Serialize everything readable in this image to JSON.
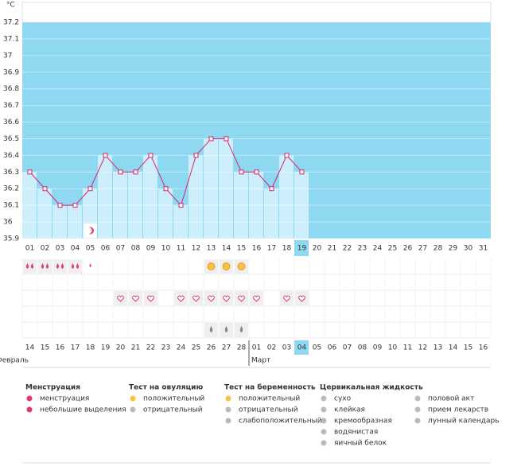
{
  "chart_data": {
    "type": "bar-line",
    "y_unit": "°C",
    "categories": [
      "01",
      "02",
      "03",
      "04",
      "05",
      "06",
      "07",
      "08",
      "09",
      "10",
      "11",
      "12",
      "13",
      "14",
      "15",
      "16",
      "17",
      "18",
      "19",
      "20",
      "21",
      "22",
      "23",
      "24",
      "25",
      "26",
      "27",
      "28",
      "29",
      "30",
      "31"
    ],
    "values": [
      36.3,
      36.2,
      36.1,
      36.1,
      36.2,
      36.4,
      36.3,
      36.3,
      36.4,
      36.2,
      36.1,
      36.4,
      36.5,
      36.5,
      36.3,
      36.3,
      36.2,
      36.4,
      36.3,
      null,
      null,
      null,
      null,
      null,
      null,
      null,
      null,
      null,
      null,
      null,
      null
    ],
    "color": "#d6246e",
    "bar_color": "#cdeefb",
    "background_color": "#8fd8f2",
    "ylim": [
      35.9,
      37.2
    ],
    "yticks": [
      35.9,
      36,
      36.1,
      36.2,
      36.3,
      36.4,
      36.5,
      36.6,
      36.7,
      36.8,
      36.9,
      37,
      37.1,
      37.2
    ],
    "grid": true,
    "bottom_dates": [
      "14",
      "15",
      "16",
      "17",
      "18",
      "19",
      "20",
      "21",
      "22",
      "23",
      "24",
      "25",
      "26",
      "27",
      "28",
      "01",
      "02",
      "03",
      "04",
      "05",
      "06",
      "07",
      "08",
      "09",
      "10",
      "11",
      "12",
      "13",
      "14",
      "15",
      "16"
    ],
    "bottom_date_colors": [
      "#333",
      "#c8174f",
      "#c8174f",
      "#333",
      "#333",
      "#333",
      "#333",
      "#333",
      "#c8174f",
      "#c8174f",
      "#333",
      "#333",
      "#333",
      "#333",
      "#333",
      "#c8174f",
      "#c8174f",
      "#333",
      "#333",
      "#333",
      "#333",
      "#333",
      "#c8174f",
      "#c8174f",
      "#333",
      "#333",
      "#333",
      "#333",
      "#333",
      "#c8174f",
      "#c8174f"
    ],
    "months": [
      "Февраль",
      "Март"
    ]
  },
  "legend": [
    {
      "title": "Менструация",
      "items": [
        "менструация",
        "небольшие выделения"
      ]
    },
    {
      "title": "Тест на овуляцию",
      "items": [
        "положительный",
        "отрицательный"
      ]
    },
    {
      "title": "Тест на беременность",
      "items": [
        "положительный",
        "отрицательный",
        "слабоположительный"
      ]
    },
    {
      "title": "Цервикальная жидкость",
      "items": [
        "сухо",
        "клейкая",
        "кремообразная",
        "водянистая",
        "яичный белок"
      ]
    },
    {
      "items": [
        "половой акт",
        "прием лекарств",
        "лунный календарь"
      ]
    }
  ]
}
